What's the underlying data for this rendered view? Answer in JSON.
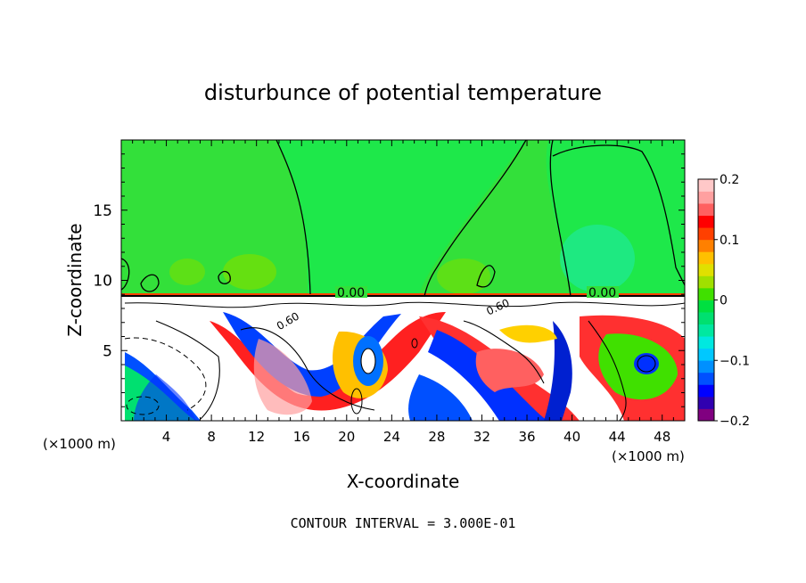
{
  "chart_data": {
    "type": "heatmap",
    "title": "disturbunce of potential temperature",
    "xlabel": "X-coordinate",
    "ylabel": "Z-coordinate",
    "x_unit_left": "(×1000 m)",
    "x_unit_right": "(×1000 m)",
    "xlim": [
      0,
      50
    ],
    "ylim": [
      0,
      20
    ],
    "x_ticks": [
      4,
      8,
      12,
      16,
      20,
      24,
      28,
      32,
      36,
      40,
      44,
      48
    ],
    "x_tick_labels": [
      "4",
      "8",
      "12",
      "16",
      "20",
      "24",
      "28",
      "32",
      "36",
      "40",
      "44",
      "48"
    ],
    "y_ticks": [
      5,
      10,
      15
    ],
    "y_tick_labels": [
      "5",
      "10",
      "15"
    ],
    "colorbar": {
      "min": -0.2,
      "max": 0.2,
      "ticks": [
        0.2,
        0.1,
        0,
        -0.1,
        -0.2
      ],
      "tick_labels": [
        "0.2",
        "0.1",
        "0",
        "−0.1",
        "−0.2"
      ],
      "colors": [
        "#800080",
        "#3000b0",
        "#0000ff",
        "#0050ff",
        "#0090ff",
        "#00c8ff",
        "#00e8e0",
        "#00e8a0",
        "#00e070",
        "#00e040",
        "#40e000",
        "#a0e000",
        "#e0e000",
        "#ffc000",
        "#ff8000",
        "#ff4000",
        "#ff0000",
        "#ff6060",
        "#ffa0a0",
        "#ffc8c8"
      ]
    },
    "contour_labels": [
      "0.00",
      "0.00",
      "0.60",
      "0.60"
    ],
    "footer": "CONTOUR INTERVAL = 3.000E-01"
  }
}
